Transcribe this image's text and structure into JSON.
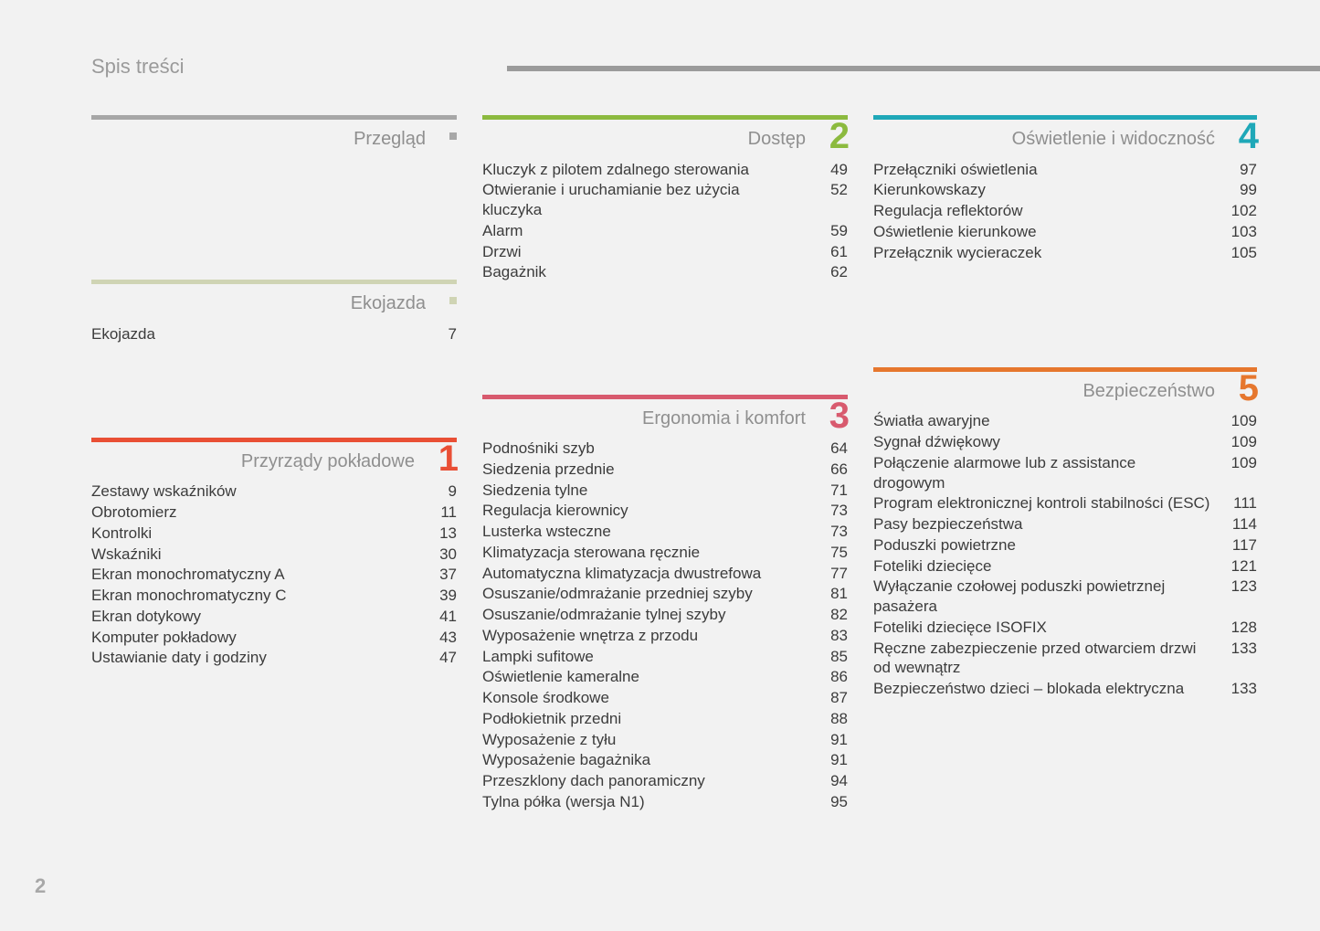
{
  "doc_title": "Spis treści",
  "page_number": "2",
  "colors": {
    "top_rule": "#9b9b9b",
    "overview_rule": "#a7a7a7",
    "overview_dot": "#a7a7a7",
    "eco_rule": "#cfd4b4",
    "eco_dot": "#cfd4b4",
    "s1": "#e94f35",
    "s2": "#8cba3f",
    "s3": "#d85a6e",
    "s4": "#1fa8b8",
    "s5": "#e6772e"
  },
  "sections": {
    "overview": {
      "title": "Przegląd",
      "entries": []
    },
    "eco": {
      "title": "Ekojazda",
      "entries": [
        {
          "label": "Ekojazda",
          "page": "7"
        }
      ]
    },
    "s1": {
      "num": "1",
      "title": "Przyrządy pokładowe",
      "entries": [
        {
          "label": "Zestawy wskaźników",
          "page": "9"
        },
        {
          "label": "Obrotomierz",
          "page": "11"
        },
        {
          "label": "Kontrolki",
          "page": "13"
        },
        {
          "label": "Wskaźniki",
          "page": "30"
        },
        {
          "label": "Ekran monochromatyczny A",
          "page": "37"
        },
        {
          "label": "Ekran monochromatyczny C",
          "page": "39"
        },
        {
          "label": "Ekran dotykowy",
          "page": "41"
        },
        {
          "label": "Komputer pokładowy",
          "page": "43"
        },
        {
          "label": "Ustawianie daty i godziny",
          "page": "47"
        }
      ]
    },
    "s2": {
      "num": "2",
      "title": "Dostęp",
      "entries": [
        {
          "label": "Kluczyk z pilotem zdalnego sterowania",
          "page": "49"
        },
        {
          "label": "Otwieranie i uruchamianie bez użycia kluczyka",
          "page": "52"
        },
        {
          "label": "Alarm",
          "page": "59"
        },
        {
          "label": "Drzwi",
          "page": "61"
        },
        {
          "label": "Bagażnik",
          "page": "62"
        }
      ]
    },
    "s3": {
      "num": "3",
      "title": "Ergonomia i komfort",
      "entries": [
        {
          "label": "Podnośniki szyb",
          "page": "64"
        },
        {
          "label": "Siedzenia przednie",
          "page": "66"
        },
        {
          "label": "Siedzenia tylne",
          "page": "71"
        },
        {
          "label": "Regulacja kierownicy",
          "page": "73"
        },
        {
          "label": "Lusterka wsteczne",
          "page": "73"
        },
        {
          "label": "Klimatyzacja sterowana ręcznie",
          "page": "75"
        },
        {
          "label": "Automatyczna klimatyzacja dwustrefowa",
          "page": "77"
        },
        {
          "label": "Osuszanie/odmrażanie przedniej szyby",
          "page": "81"
        },
        {
          "label": "Osuszanie/odmrażanie tylnej szyby",
          "page": "82"
        },
        {
          "label": "Wyposażenie wnętrza z przodu",
          "page": "83"
        },
        {
          "label": "Lampki sufitowe",
          "page": "85"
        },
        {
          "label": "Oświetlenie kameralne",
          "page": "86"
        },
        {
          "label": "Konsole środkowe",
          "page": "87"
        },
        {
          "label": "Podłokietnik przedni",
          "page": "88"
        },
        {
          "label": "Wyposażenie z tyłu",
          "page": "91"
        },
        {
          "label": "Wyposażenie bagażnika",
          "page": "91"
        },
        {
          "label": "Przeszklony dach panoramiczny",
          "page": "94"
        },
        {
          "label": "Tylna półka (wersja N1)",
          "page": "95"
        }
      ]
    },
    "s4": {
      "num": "4",
      "title": "Oświetlenie i widoczność",
      "entries": [
        {
          "label": "Przełączniki oświetlenia",
          "page": "97"
        },
        {
          "label": "Kierunkowskazy",
          "page": "99"
        },
        {
          "label": "Regulacja reflektorów",
          "page": "102"
        },
        {
          "label": "Oświetlenie kierunkowe",
          "page": "103"
        },
        {
          "label": "Przełącznik wycieraczek",
          "page": "105"
        }
      ]
    },
    "s5": {
      "num": "5",
      "title": "Bezpieczeństwo",
      "entries": [
        {
          "label": "Światła awaryjne",
          "page": "109"
        },
        {
          "label": "Sygnał dźwiękowy",
          "page": "109"
        },
        {
          "label": "Połączenie alarmowe lub z assistance drogowym",
          "page": "109"
        },
        {
          "label": "Program elektronicznej kontroli stabilności (ESC)",
          "page": "111"
        },
        {
          "label": "Pasy bezpieczeństwa",
          "page": "114"
        },
        {
          "label": "Poduszki powietrzne",
          "page": "117"
        },
        {
          "label": "Foteliki dziecięce",
          "page": "121"
        },
        {
          "label": "Wyłączanie czołowej poduszki powietrznej pasażera",
          "page": "123"
        },
        {
          "label": "Foteliki dziecięce ISOFIX",
          "page": "128"
        },
        {
          "label": "Ręczne zabezpieczenie przed otwarciem drzwi od wewnątrz",
          "page": "133"
        },
        {
          "label": "Bezpieczeństwo dzieci – blokada elektryczna",
          "page": "133"
        }
      ]
    }
  }
}
